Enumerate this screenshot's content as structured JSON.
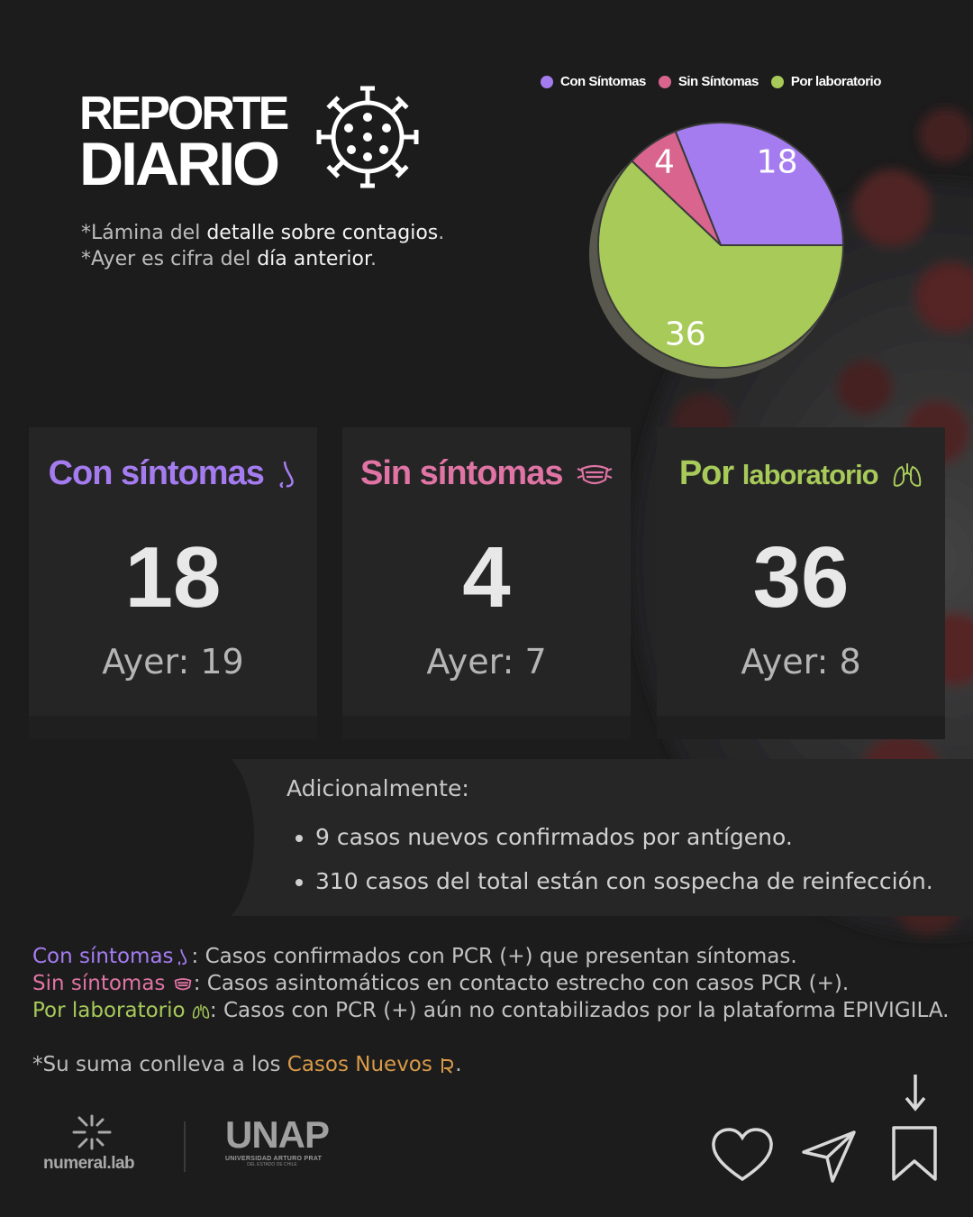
{
  "title": {
    "line1": "REPORTE",
    "line2": "DIARIO"
  },
  "notes": [
    {
      "pre": "*Lámina del ",
      "hl": "detalle sobre contagios",
      "post": "."
    },
    {
      "pre": "*Ayer es cifra del ",
      "hl": "día anterior",
      "post": "."
    }
  ],
  "chart_data": {
    "type": "pie",
    "title": "",
    "categories": [
      "Con Síntomas",
      "Sin Síntomas",
      "Por laboratorio"
    ],
    "values": [
      18,
      4,
      36
    ],
    "colors": [
      "#a57cf0",
      "#d9658e",
      "#a7ca59"
    ],
    "legend_position": "top"
  },
  "cards": [
    {
      "label": "Con síntomas",
      "label_small": "",
      "icon": "nose-icon",
      "value": "18",
      "ayer": "Ayer: 19",
      "color": "#a57cf0"
    },
    {
      "label": "Sin síntomas",
      "label_small": "",
      "icon": "mask-icon",
      "value": "4",
      "ayer": "Ayer: 7",
      "color": "#e074a4"
    },
    {
      "label": "Por ",
      "label_small": "laboratorio",
      "icon": "lungs-icon",
      "value": "36",
      "ayer": "Ayer: 8",
      "color": "#a7ca59"
    }
  ],
  "additional": {
    "heading": "Adicionalmente:",
    "items": [
      "9 casos nuevos confirmados por antígeno.",
      "310 casos del total están con sospecha de reinfección."
    ]
  },
  "definitions": [
    {
      "term": "Con síntomas",
      "icon": "nose-icon",
      "text": ": Casos confirmados con PCR (+) que presentan síntomas.",
      "color": "#a57cf0"
    },
    {
      "term": "Sin síntomas",
      "icon": "mask-icon",
      "text": ": Casos asintomáticos en contacto estrecho con casos PCR (+).",
      "color": "#e074a4"
    },
    {
      "term": "Por laboratorio",
      "icon": "lungs-icon",
      "text": ": Casos con PCR (+) aún no contabilizados por la plataforma EPIVIGILA.",
      "color": "#a7ca59"
    }
  ],
  "sum_note": {
    "pre": "*Su suma conlleva a los ",
    "term": "Casos Nuevos",
    "post": ".",
    "color": "#d89a48",
    "icon": "virus-small-icon"
  },
  "logos": {
    "numeral": "numeral.lab",
    "unap": "UNAP",
    "unap_sub1": "UNIVERSIDAD ARTURO PRAT",
    "unap_sub2": "DEL ESTADO DE CHILE"
  },
  "actions": [
    "heart-icon",
    "send-icon",
    "bookmark-icon",
    "arrow-down-icon"
  ]
}
